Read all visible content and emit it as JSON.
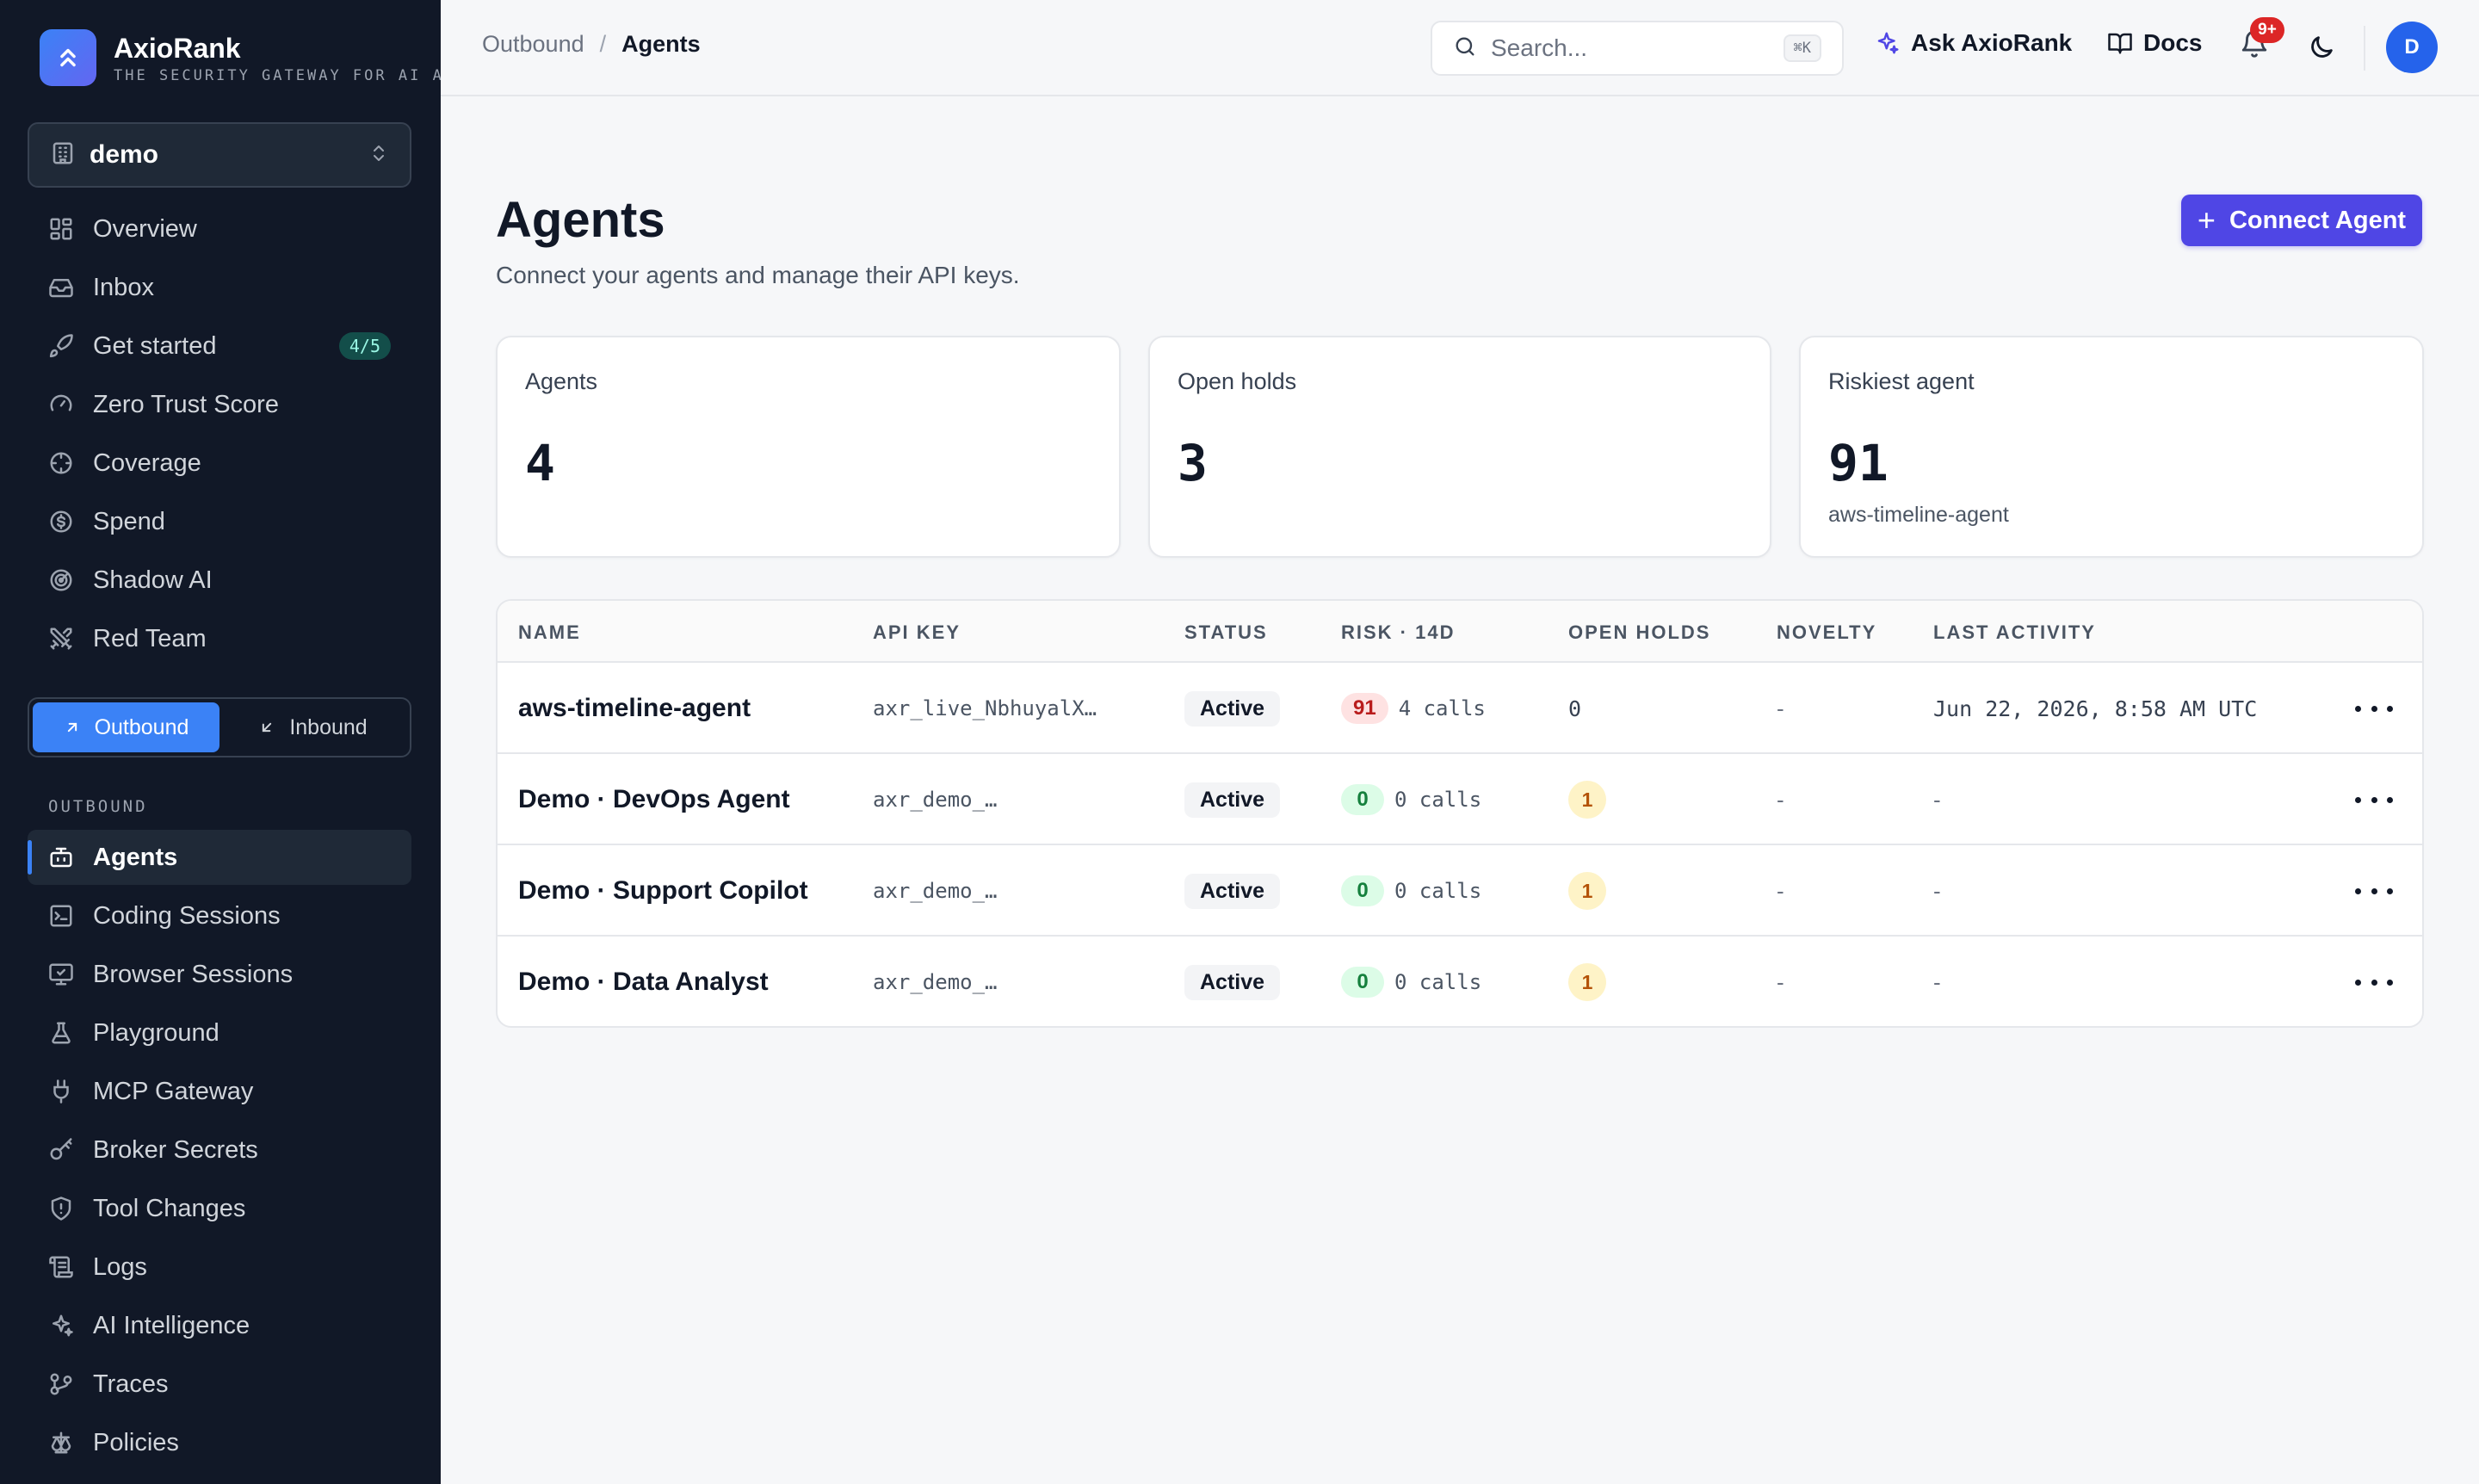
{
  "brand": {
    "name": "AxioRank",
    "tagline": "THE SECURITY GATEWAY FOR AI AG"
  },
  "workspace": {
    "name": "demo"
  },
  "nav_main": [
    {
      "label": "Overview",
      "icon": "grid-icon"
    },
    {
      "label": "Inbox",
      "icon": "inbox-icon"
    },
    {
      "label": "Get started",
      "icon": "rocket-icon",
      "badge": "4/5"
    },
    {
      "label": "Zero Trust Score",
      "icon": "gauge-icon"
    },
    {
      "label": "Coverage",
      "icon": "crosshair-icon"
    },
    {
      "label": "Spend",
      "icon": "dollar-icon"
    },
    {
      "label": "Shadow AI",
      "icon": "radar-icon"
    },
    {
      "label": "Red Team",
      "icon": "swords-icon"
    }
  ],
  "direction_toggle": {
    "outbound": "Outbound",
    "inbound": "Inbound",
    "selected": "Outbound"
  },
  "section_label": "OUTBOUND",
  "nav_outbound": [
    {
      "label": "Agents",
      "icon": "bot-icon",
      "active": true
    },
    {
      "label": "Coding Sessions",
      "icon": "terminal-icon"
    },
    {
      "label": "Browser Sessions",
      "icon": "monitor-icon"
    },
    {
      "label": "Playground",
      "icon": "flask-icon"
    },
    {
      "label": "MCP Gateway",
      "icon": "plug-icon"
    },
    {
      "label": "Broker Secrets",
      "icon": "key-icon"
    },
    {
      "label": "Tool Changes",
      "icon": "shield-icon"
    },
    {
      "label": "Logs",
      "icon": "scroll-icon"
    },
    {
      "label": "AI Intelligence",
      "icon": "sparkles-icon"
    },
    {
      "label": "Traces",
      "icon": "git-branch-icon"
    },
    {
      "label": "Policies",
      "icon": "scale-icon"
    }
  ],
  "breadcrumb": {
    "parent": "Outbound",
    "separator": "/",
    "current": "Agents"
  },
  "search": {
    "placeholder": "Search...",
    "shortcut": "⌘K"
  },
  "topbar": {
    "ask_label": "Ask AxioRank",
    "docs_label": "Docs",
    "notifications_count": "9+",
    "avatar_initial": "D"
  },
  "page": {
    "title": "Agents",
    "subtitle": "Connect your agents and manage their API keys.",
    "primary_action": "Connect Agent"
  },
  "stats": [
    {
      "label": "Agents",
      "value": "4",
      "sub": ""
    },
    {
      "label": "Open holds",
      "value": "3",
      "sub": ""
    },
    {
      "label": "Riskiest agent",
      "value": "91",
      "sub": "aws-timeline-agent"
    }
  ],
  "table": {
    "columns": [
      "NAME",
      "API KEY",
      "STATUS",
      "RISK · 14D",
      "OPEN HOLDS",
      "NOVELTY",
      "LAST ACTIVITY"
    ],
    "rows": [
      {
        "name": "aws-timeline-agent",
        "api_key": "axr_live_NbhuyalX…",
        "status": "Active",
        "risk": "91",
        "risk_level": "high",
        "calls": "4 calls",
        "open_holds": "0",
        "holds_flag": false,
        "novelty": "-",
        "last_activity": "Jun 22, 2026, 8:58 AM UTC"
      },
      {
        "name": "Demo · DevOps Agent",
        "api_key": "axr_demo_…",
        "status": "Active",
        "risk": "0",
        "risk_level": "low",
        "calls": "0 calls",
        "open_holds": "1",
        "holds_flag": true,
        "novelty": "-",
        "last_activity": "-"
      },
      {
        "name": "Demo · Support Copilot",
        "api_key": "axr_demo_…",
        "status": "Active",
        "risk": "0",
        "risk_level": "low",
        "calls": "0 calls",
        "open_holds": "1",
        "holds_flag": true,
        "novelty": "-",
        "last_activity": "-"
      },
      {
        "name": "Demo · Data Analyst",
        "api_key": "axr_demo_…",
        "status": "Active",
        "risk": "0",
        "risk_level": "low",
        "calls": "0 calls",
        "open_holds": "1",
        "holds_flag": true,
        "novelty": "-",
        "last_activity": "-"
      }
    ]
  },
  "colors": {
    "accent": "#4f46e5",
    "sidebar_bg": "#111827",
    "active_indicator": "#3b82f6",
    "risk_high": "#b91c1c",
    "risk_low": "#15803d",
    "holds": "#b45309"
  }
}
